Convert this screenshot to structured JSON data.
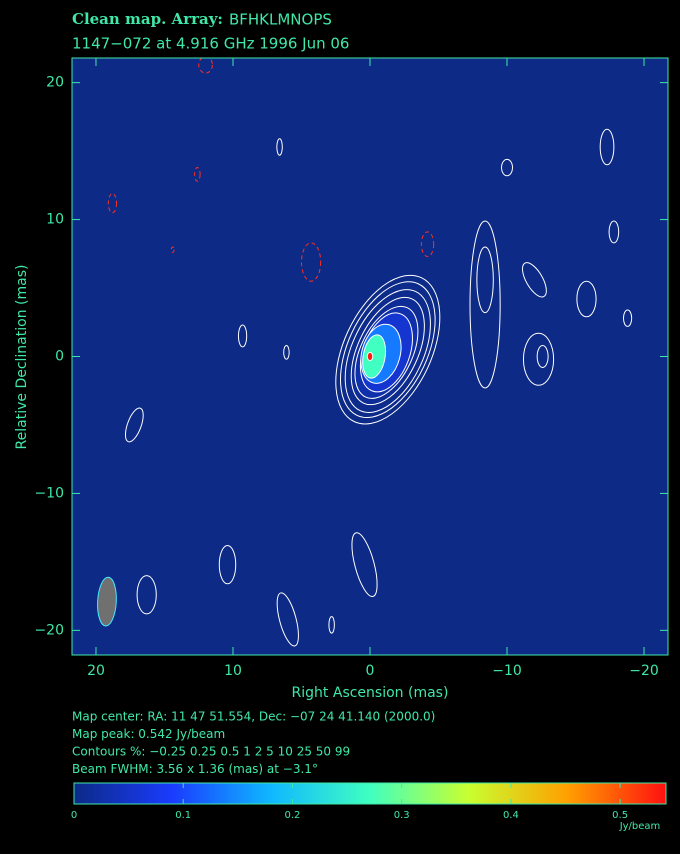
{
  "chart_data": {
    "type": "contour_map",
    "title": "Clean map.  Array:",
    "array": "BFHKLMNOPS",
    "subtitle": "1147−072 at 4.916 GHz 1996 Jun 06",
    "xlabel": "Right Ascension  (mas)",
    "ylabel": "Relative Declination  (mas)",
    "xlim": [
      21.75,
      -21.75
    ],
    "ylim": [
      -21.8,
      21.8
    ],
    "xticks": [
      20,
      10,
      0,
      {
        "value": -10,
        "label": "−10"
      },
      {
        "value": -20,
        "label": "−20"
      }
    ],
    "yticks": [
      {
        "value": -20,
        "label": "−20"
      },
      {
        "value": -10,
        "label": "−10"
      },
      0,
      10,
      20
    ],
    "background": "#0c2a86",
    "text_color": "#40e8a8",
    "positive_color": "#ffffff",
    "negative_color": "#ff3020",
    "colormap": [
      "#0c2a86",
      "#1a3cff",
      "#10b8ff",
      "#40ffc0",
      "#c8ff30",
      "#ffa000",
      "#ff1010"
    ],
    "clim": [
      0,
      0.542
    ],
    "cticks": [
      0,
      0.1,
      0.2,
      0.3,
      0.4,
      0.5
    ],
    "clabel": "Jy/beam",
    "core_contours": [
      {
        "level": 0.25,
        "x": -1.3,
        "y": 0.5,
        "rx": 3.2,
        "ry": 5.8,
        "angle": 25
      },
      {
        "level": 0.5,
        "x": -1.3,
        "y": 0.5,
        "rx": 2.9,
        "ry": 5.3,
        "angle": 25
      },
      {
        "level": 1,
        "x": -1.3,
        "y": 0.4,
        "rx": 2.6,
        "ry": 4.8,
        "angle": 25
      },
      {
        "level": 2,
        "x": -1.3,
        "y": 0.4,
        "rx": 2.2,
        "ry": 4.2,
        "angle": 25
      },
      {
        "level": 5,
        "x": -1.2,
        "y": 0.3,
        "rx": 1.9,
        "ry": 3.6,
        "angle": 25
      },
      {
        "level": 10,
        "x": -1.2,
        "y": 0.3,
        "rx": 1.7,
        "ry": 3.0,
        "angle": 20
      },
      {
        "level": 25,
        "x": -0.8,
        "y": 0.2,
        "rx": 1.4,
        "ry": 2.2,
        "angle": 15
      },
      {
        "level": 50,
        "x": -0.3,
        "y": 0,
        "rx": 0.8,
        "ry": 1.6,
        "angle": 10
      },
      {
        "level": 99,
        "x": 0,
        "y": 0,
        "rx": 0.2,
        "ry": 0.3,
        "angle": 0
      }
    ],
    "contours": [
      {
        "level": 0.25,
        "x": 6.6,
        "y": 15.3,
        "rx": 0.2,
        "ry": 0.6,
        "angle": 0
      },
      {
        "level": 0.25,
        "x": 9.3,
        "y": 1.5,
        "rx": 0.3,
        "ry": 0.8,
        "angle": 0
      },
      {
        "level": 0.25,
        "x": 6.1,
        "y": 0.3,
        "rx": 0.2,
        "ry": 0.5,
        "angle": 0
      },
      {
        "level": 0.25,
        "x": 17.2,
        "y": -5.0,
        "rx": 0.5,
        "ry": 1.3,
        "angle": 20
      },
      {
        "level": 0.25,
        "x": 10.4,
        "y": -15.2,
        "rx": 0.6,
        "ry": 1.4,
        "angle": 0
      },
      {
        "level": 0.25,
        "x": 16.3,
        "y": -17.4,
        "rx": 0.7,
        "ry": 1.4,
        "angle": 0
      },
      {
        "level": 0.25,
        "x": 6.0,
        "y": -19.2,
        "rx": 0.6,
        "ry": 2.0,
        "angle": -15
      },
      {
        "level": 0.25,
        "x": 2.8,
        "y": -19.6,
        "rx": 0.2,
        "ry": 0.6,
        "angle": 0
      },
      {
        "level": 0.25,
        "x": 0.4,
        "y": -15.2,
        "rx": 0.7,
        "ry": 2.4,
        "angle": -15
      },
      {
        "level": 0.25,
        "x": -8.4,
        "y": 3.8,
        "rx": 1.1,
        "ry": 6.1,
        "angle": 0
      },
      {
        "level": 0.5,
        "x": -8.4,
        "y": 5.6,
        "rx": 0.6,
        "ry": 2.4,
        "angle": 0
      },
      {
        "level": 0.25,
        "x": -12.3,
        "y": -0.2,
        "rx": 1.1,
        "ry": 1.9,
        "angle": 0
      },
      {
        "level": 0.5,
        "x": -12.6,
        "y": 0,
        "rx": 0.4,
        "ry": 0.8,
        "angle": 0
      },
      {
        "level": 0.25,
        "x": -10,
        "y": 13.8,
        "rx": 0.4,
        "ry": 0.6,
        "angle": 0
      },
      {
        "level": 0.25,
        "x": -12,
        "y": 5.6,
        "rx": 0.6,
        "ry": 1.4,
        "angle": -30
      },
      {
        "level": 0.25,
        "x": -15.8,
        "y": 4.2,
        "rx": 0.7,
        "ry": 1.3,
        "angle": 0
      },
      {
        "level": 0.25,
        "x": -17.3,
        "y": 15.3,
        "rx": 0.5,
        "ry": 1.3,
        "angle": 0
      },
      {
        "level": 0.25,
        "x": -17.8,
        "y": 9.1,
        "rx": 0.35,
        "ry": 0.8,
        "angle": 0
      },
      {
        "level": 0.25,
        "x": -18.8,
        "y": 2.8,
        "rx": 0.3,
        "ry": 0.6,
        "angle": 0
      },
      {
        "level": -0.25,
        "x": 12.0,
        "y": 21.3,
        "rx": 0.5,
        "ry": 0.6,
        "angle": 0
      },
      {
        "level": -0.25,
        "x": 12.6,
        "y": 13.3,
        "rx": 0.2,
        "ry": 0.5,
        "angle": 0
      },
      {
        "level": -0.25,
        "x": 18.8,
        "y": 11.2,
        "rx": 0.3,
        "ry": 0.7,
        "angle": 0
      },
      {
        "level": -0.25,
        "x": 14.4,
        "y": 7.8,
        "rx": 0.1,
        "ry": 0.2,
        "angle": 0
      },
      {
        "level": -0.25,
        "x": 4.3,
        "y": 6.9,
        "rx": 0.7,
        "ry": 1.4,
        "angle": 0
      },
      {
        "level": -0.25,
        "x": -4.2,
        "y": 8.2,
        "rx": 0.45,
        "ry": 0.9,
        "angle": 0
      }
    ],
    "beam": {
      "x": 19.2,
      "y": -17.9,
      "major": 3.56,
      "minor": 1.36,
      "pa": -3.1,
      "color": "#707070"
    },
    "info": [
      "Map center:  RA: 11 47 51.554,  Dec: −07 24 41.140 (2000.0)",
      "Map peak: 0.542 Jy/beam",
      "Contours %: −0.25 0.25 0.5 1 2 5 10 25 50 99",
      "Beam FWHM: 3.56 x 1.36 (mas) at −3.1°"
    ]
  }
}
